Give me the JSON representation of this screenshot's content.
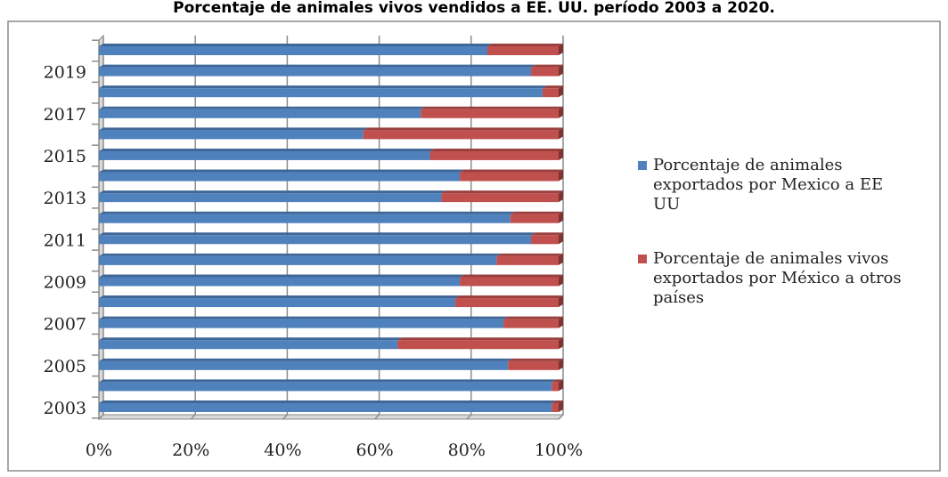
{
  "chart_data": {
    "type": "bar",
    "orientation": "horizontal",
    "stacked": "percent",
    "title": "Porcentaje de animales vivos vendidos a EE. UU. período 2003 a 2020.",
    "categories": [
      "2003",
      "2004",
      "2005",
      "2006",
      "2007",
      "2008",
      "2009",
      "2010",
      "2011",
      "2012",
      "2013",
      "2014",
      "2015",
      "2016",
      "2017",
      "2018",
      "2019",
      "2020"
    ],
    "category_labels_shown": [
      "2003",
      "2005",
      "2007",
      "2009",
      "2011",
      "2013",
      "2015",
      "2017",
      "2019"
    ],
    "series": [
      {
        "name": "Porcentaje de animales exportados por Mexico a EE UU",
        "color": "#4f81bd",
        "values": [
          98.5,
          98.5,
          89,
          65,
          88,
          77.5,
          78.5,
          86.5,
          94,
          89.5,
          74.5,
          78.5,
          72,
          57.5,
          70,
          96.5,
          94,
          84.5
        ]
      },
      {
        "name": "Porcentaje de animales vivos exportados por México a otros países",
        "color": "#c0504d",
        "values": [
          1.5,
          1.5,
          11,
          35,
          12,
          22.5,
          21.5,
          13.5,
          6,
          10.5,
          25.5,
          21.5,
          28,
          42.5,
          30,
          3.5,
          6,
          15.5
        ]
      }
    ],
    "xaxis": {
      "ticks": [
        "0%",
        "20%",
        "40%",
        "60%",
        "80%",
        "100%"
      ],
      "range": [
        0,
        100
      ]
    },
    "grid": true,
    "legend_position": "right"
  }
}
